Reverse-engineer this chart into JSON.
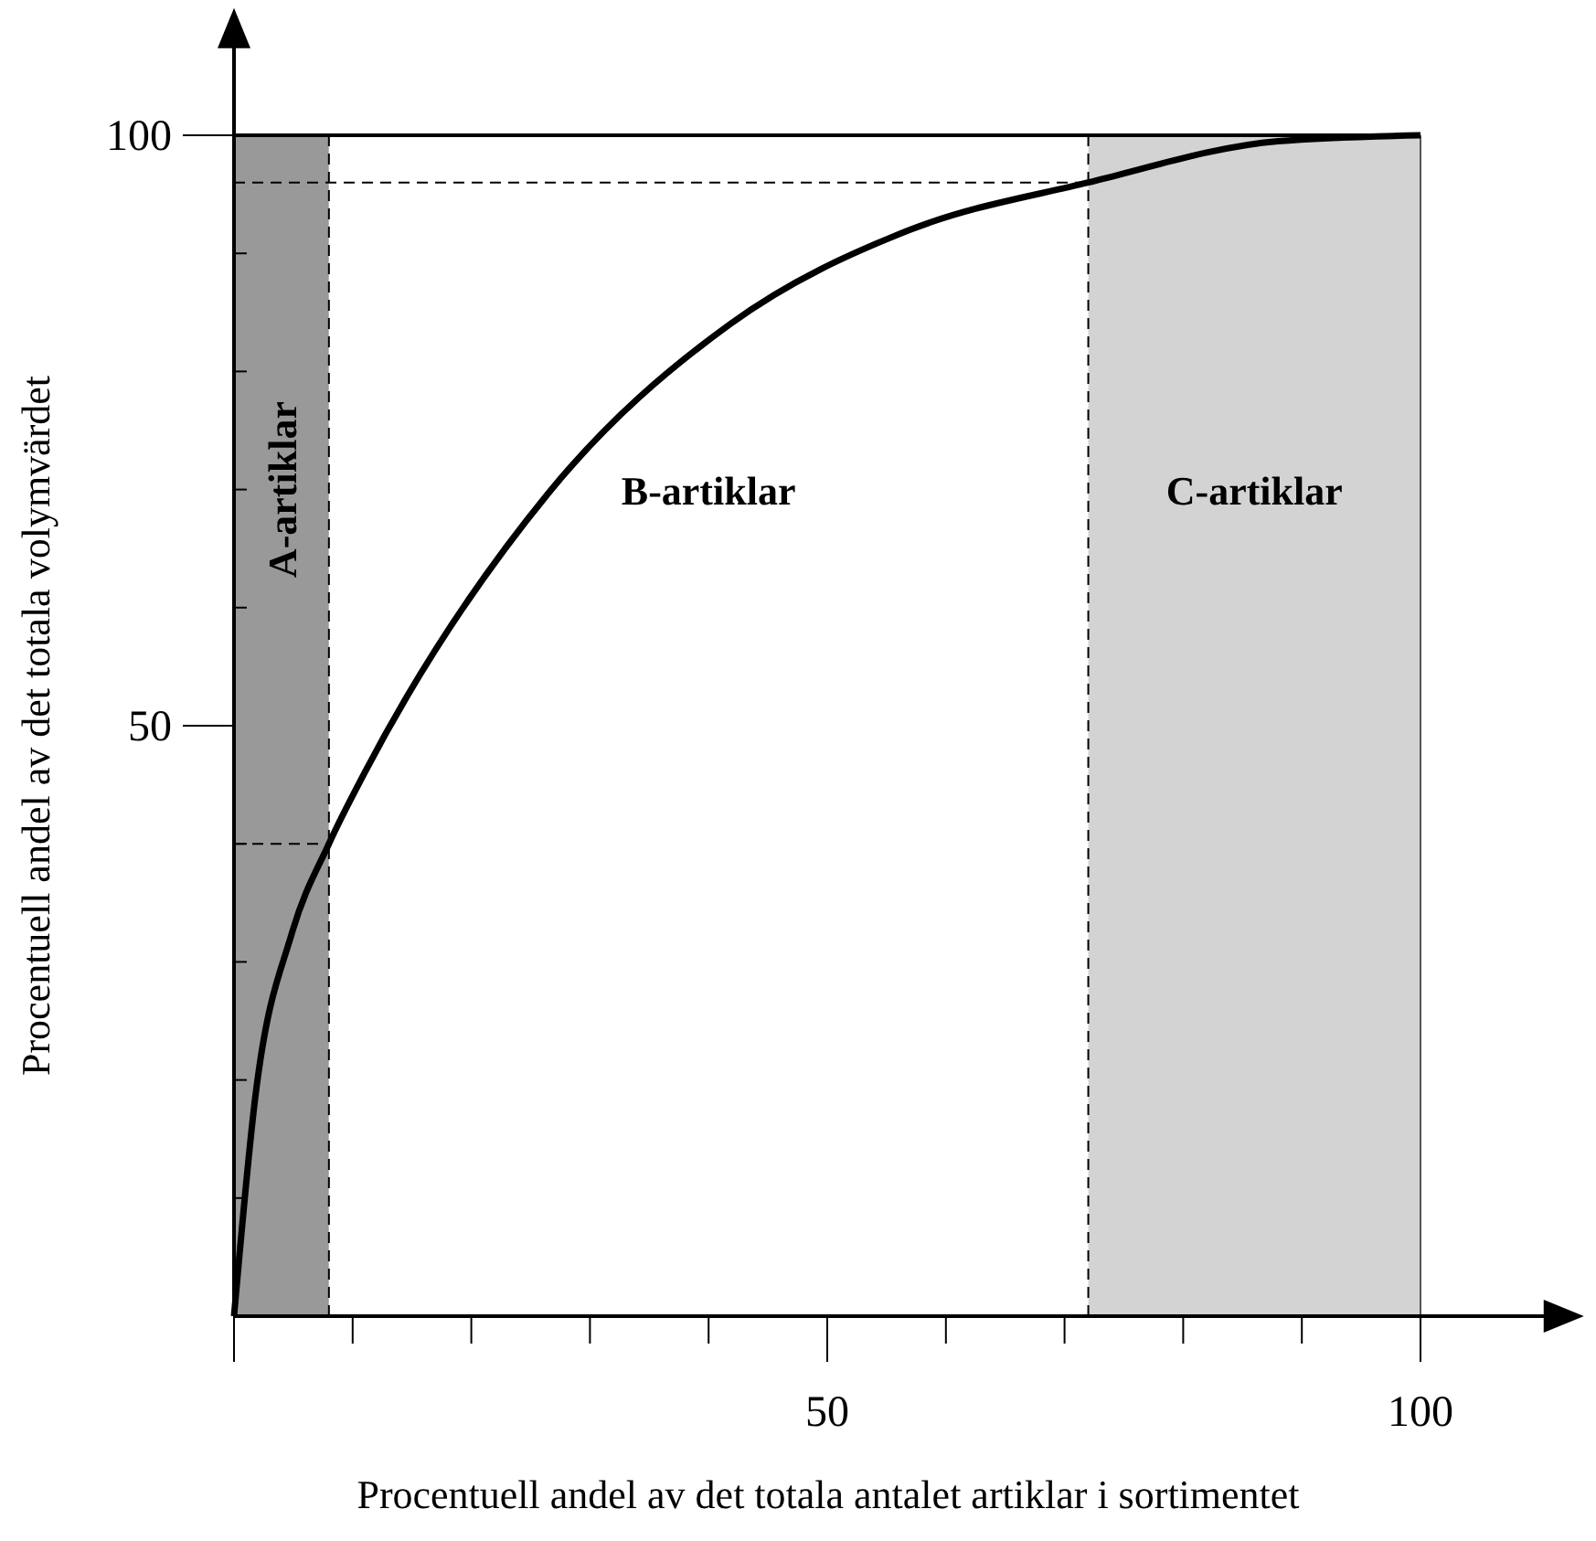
{
  "chart_data": {
    "type": "line",
    "xlabel": "Procentuell andel av det totala antalet artiklar i sortimentet",
    "ylabel": "Procentuell andel av det totala volymvärdet",
    "xlim": [
      0,
      111
    ],
    "ylim": [
      0,
      108
    ],
    "xticks": [
      {
        "value": 0,
        "label": null
      },
      {
        "value": 10,
        "label": null
      },
      {
        "value": 20,
        "label": null
      },
      {
        "value": 30,
        "label": null
      },
      {
        "value": 40,
        "label": null
      },
      50,
      {
        "value": 60,
        "label": null
      },
      {
        "value": 70,
        "label": null
      },
      {
        "value": 80,
        "label": null
      },
      {
        "value": 90,
        "label": null
      },
      100
    ],
    "yticks": [
      {
        "value": 10,
        "label": null
      },
      {
        "value": 20,
        "label": null
      },
      {
        "value": 30,
        "label": null
      },
      {
        "value": 40,
        "label": null
      },
      50,
      {
        "value": 60,
        "label": null
      },
      {
        "value": 70,
        "label": null
      },
      {
        "value": 80,
        "label": null
      },
      {
        "value": 90,
        "label": null
      },
      100
    ],
    "series": [
      {
        "color": "#000000",
        "x": [
          0,
          1.8,
          4.9,
          8,
          11,
          26.5,
          41.8,
          57,
          72,
          88,
          100
        ],
        "values": [
          0,
          18.6,
          32.5,
          40,
          46,
          69.7,
          84,
          92,
          96,
          99.5,
          100
        ]
      },
      {
        "color": "#000000",
        "line_style": "dashed",
        "x": [
          0,
          8
        ],
        "values": [
          40,
          40
        ]
      },
      {
        "color": "#000000",
        "line_style": "dashed",
        "x": [
          0,
          72
        ],
        "values": [
          96,
          96
        ]
      }
    ],
    "bands": [
      {
        "axis": "x",
        "from": 0,
        "to": 8,
        "label": "A-artiklar",
        "color": "#999999"
      },
      {
        "axis": "x",
        "from": 8,
        "to": 72,
        "label": "B-artiklar",
        "color": "#ffffff"
      },
      {
        "axis": "x",
        "from": 72,
        "to": 100,
        "label": "C-artiklar",
        "color": "#d3d3d3"
      }
    ],
    "ref_lines": [
      {
        "axis": "x",
        "value": 8,
        "line_style": "dashed"
      },
      {
        "axis": "x",
        "value": 72,
        "line_style": "dashed"
      },
      {
        "axis": "x",
        "value": 100,
        "line_style": "solid",
        "color": "#555555"
      },
      {
        "axis": "y",
        "value": 100,
        "line_style": "solid",
        "color": "#000000"
      }
    ],
    "line_style": "solid",
    "marker": "none"
  }
}
